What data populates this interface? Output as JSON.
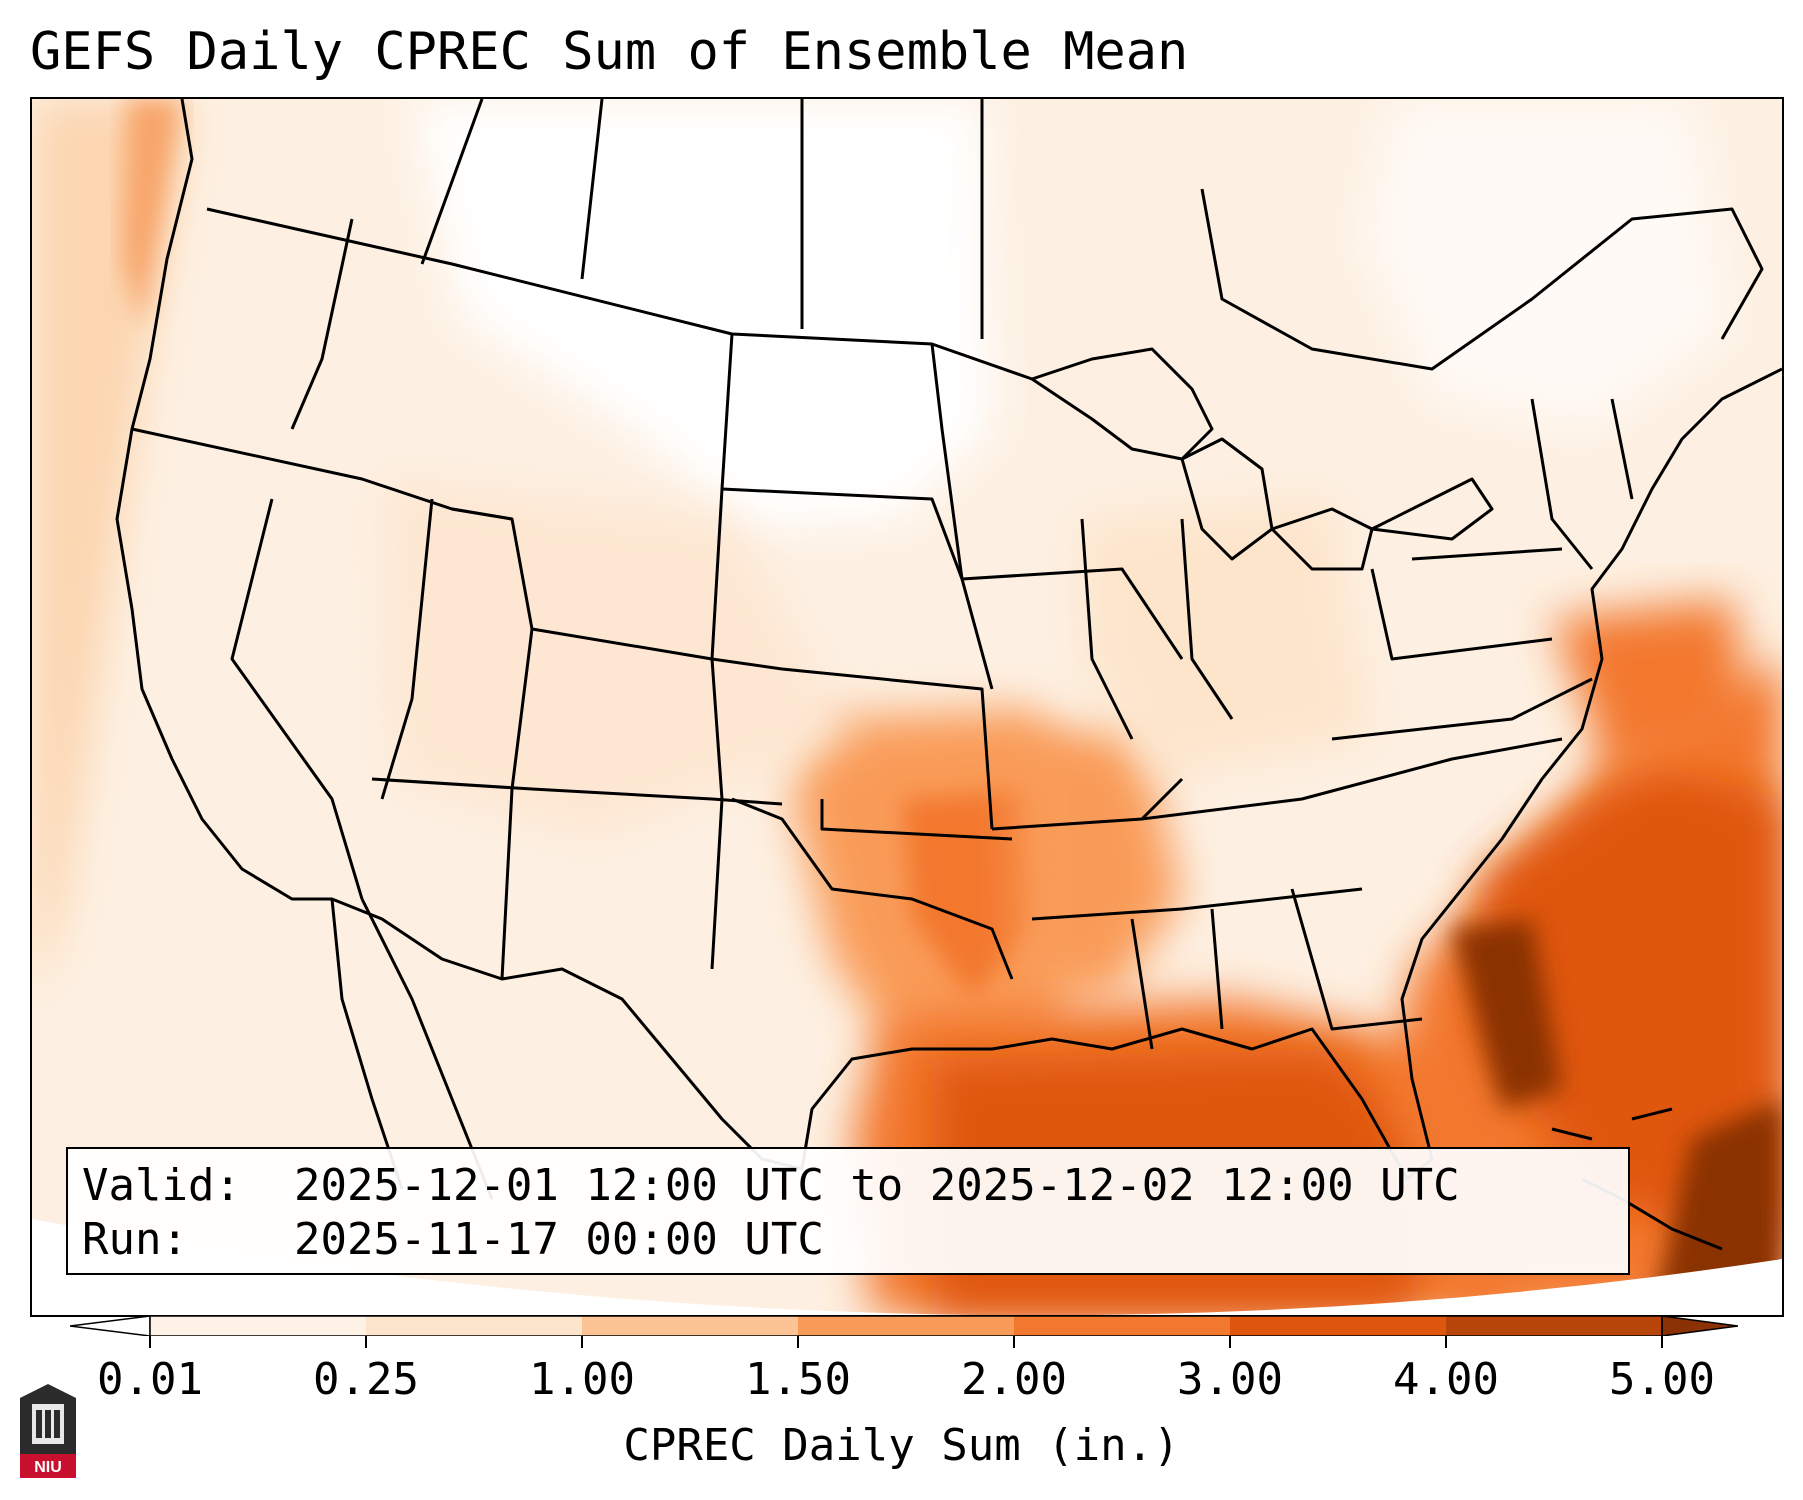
{
  "title": "GEFS Daily CPREC Sum of Ensemble Mean",
  "info": {
    "valid_key": "Valid:",
    "valid_value": "2025-12-01 12:00 UTC to 2025-12-02 12:00 UTC",
    "run_key": "Run:",
    "run_value": "2025-11-17 00:00 UTC"
  },
  "colorbar": {
    "label": "CPREC Daily Sum (in.)",
    "ticks": [
      "0.01",
      "0.25",
      "1.00",
      "1.50",
      "2.00",
      "3.00",
      "4.00",
      "5.00"
    ],
    "colors": [
      "#fef2e6",
      "#fde5cc",
      "#fcc495",
      "#f99b58",
      "#f3782f",
      "#df570f",
      "#b8460a",
      "#8a3206"
    ]
  },
  "map": {
    "projection": "conic",
    "region": "Continental United States",
    "variable": "convective precipitation daily sum",
    "heaviest_area": "Gulf of Mexico, Florida, western Atlantic"
  },
  "logo": {
    "text": "NIU",
    "icon": "university-tower-icon"
  }
}
